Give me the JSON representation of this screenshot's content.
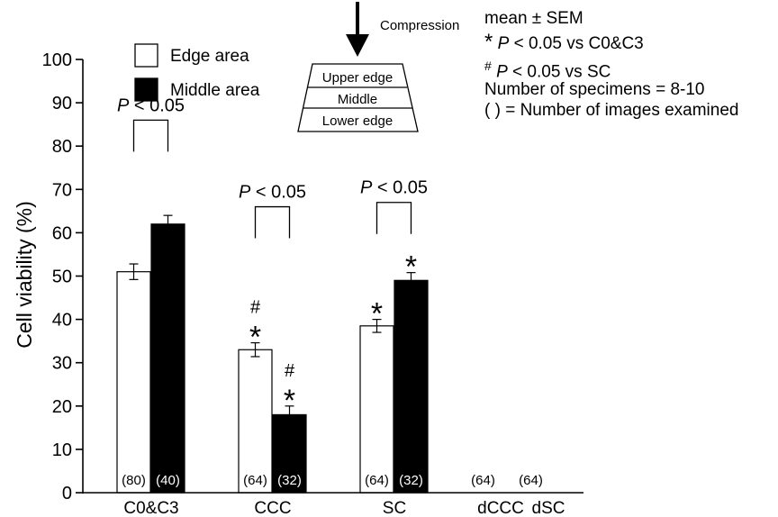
{
  "chart_data": {
    "type": "bar",
    "ylabel": "Cell viability (%)",
    "ylim": [
      0,
      100
    ],
    "yticks": [
      0,
      10,
      20,
      30,
      40,
      50,
      60,
      70,
      80,
      90,
      100
    ],
    "categories": [
      "C0&C3",
      "CCC",
      "SC",
      "dCCC",
      "dSC"
    ],
    "series": [
      {
        "name": "Edge area",
        "color": "#ffffff",
        "values": [
          51,
          33,
          38.5,
          0,
          0
        ],
        "sem": [
          1.8,
          1.6,
          1.5,
          0,
          0
        ],
        "n_images": [
          "(80)",
          "(64)",
          "(64)",
          "(64)",
          "(64)"
        ]
      },
      {
        "name": "Middle area",
        "color": "#000000",
        "values": [
          62,
          18,
          49,
          null,
          null
        ],
        "sem": [
          2.0,
          2.0,
          1.8,
          null,
          null
        ],
        "n_images": [
          "(40)",
          "(32)",
          "(32)",
          null,
          null
        ]
      }
    ],
    "comparisons": [
      {
        "category": "C0&C3",
        "label_prefix": "P",
        "label_rest": " < 0.05",
        "level": 86
      },
      {
        "category": "CCC",
        "label_prefix": "P",
        "label_rest": " < 0.05",
        "level": 66
      },
      {
        "category": "SC",
        "label_prefix": "P",
        "label_rest": " < 0.05",
        "level": 67
      }
    ],
    "markers": [
      {
        "category": "CCC",
        "series": "Edge area",
        "symbols": [
          "#",
          "*"
        ]
      },
      {
        "category": "CCC",
        "series": "Middle area",
        "symbols": [
          "#",
          "*"
        ]
      },
      {
        "category": "SC",
        "series": "Edge area",
        "symbols": [
          "*"
        ]
      },
      {
        "category": "SC",
        "series": "Middle area",
        "symbols": [
          "*"
        ]
      }
    ],
    "legend": {
      "placement": "top-left",
      "items": [
        {
          "label": "Edge area",
          "color": "#ffffff"
        },
        {
          "label": "Middle area",
          "color": "#000000"
        }
      ]
    },
    "schematic": {
      "arrow_label": "Compression",
      "layers": [
        "Upper edge",
        "Middle",
        "Lower edge"
      ]
    },
    "notes": {
      "line1": "mean ± SEM",
      "line2_symbol": "*",
      "line2_p": "P",
      "line2_rest": " < 0.05 vs C0&C3",
      "line3_symbol": "#",
      "line3_p": "P",
      "line3_rest": " < 0.05 vs SC",
      "line4": "Number of specimens = 8-10",
      "line5": "( ) = Number of images examined"
    }
  }
}
